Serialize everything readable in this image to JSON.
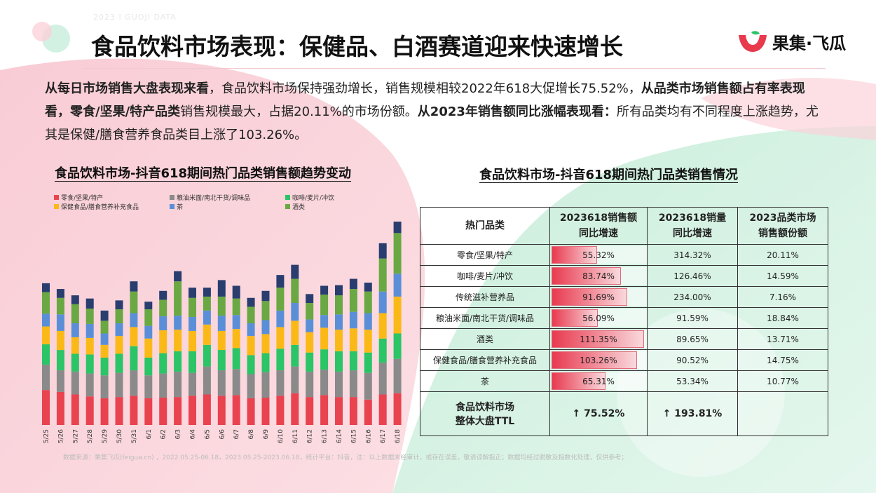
{
  "header": {
    "watermark": "2023 I GUOJI DATA",
    "title": "食品饮料市场表现：保健品、白酒赛道迎来快速增长",
    "logo_text": "果集·飞瓜",
    "logo_icon": "brand-logo-icon"
  },
  "intro": {
    "p1_bold": "从每日市场销售大盘表现来看",
    "p1": "，食品饮料市场保持强劲增长，销售规模相较2022年618大促增长75.52%，",
    "p2_bold": "从品类市场销售额占有率表现看，零食/坚果/特产品类",
    "p2": "销售规模最大，占据20.11%的市场份额。",
    "p3_bold": "从2023年销售额同比涨幅表现看：",
    "p3": "所有品类均有不同程度上涨趋势，尤其是保健/膳食营养食品类目上涨了103.26%。"
  },
  "left_chart": {
    "title": "食品饮料市场-抖音618期间热门品类销售额趋势变动"
  },
  "right_table": {
    "title": "食品饮料市场-抖音618期间热门品类销售情况",
    "headers": [
      "热门品类",
      "2023618销售额\n同比增速",
      "2023618销量\n同比增速",
      "2023品类市场\n销售额份额"
    ],
    "rows": [
      {
        "cat": "零食/坚果/特产",
        "sales_growth": "55.32%",
        "sales_growth_value": 55.32,
        "volume_growth": "314.32%",
        "share": "20.11%"
      },
      {
        "cat": "咖啡/麦片/冲饮",
        "sales_growth": "83.74%",
        "sales_growth_value": 83.74,
        "volume_growth": "126.46%",
        "share": "14.59%"
      },
      {
        "cat": "传统滋补营养品",
        "sales_growth": "91.69%",
        "sales_growth_value": 91.69,
        "volume_growth": "234.00%",
        "share": "7.16%"
      },
      {
        "cat": "粮油米面/南北干货/调味品",
        "sales_growth": "56.09%",
        "sales_growth_value": 56.09,
        "volume_growth": "91.59%",
        "share": "18.84%"
      },
      {
        "cat": "酒类",
        "sales_growth": "111.35%",
        "sales_growth_value": 111.35,
        "volume_growth": "89.65%",
        "share": "13.71%"
      },
      {
        "cat": "保健食品/膳食营养补充食品",
        "sales_growth": "103.26%",
        "sales_growth_value": 103.26,
        "volume_growth": "90.52%",
        "share": "14.75%"
      },
      {
        "cat": "茶",
        "sales_growth": "65.31%",
        "sales_growth_value": 65.31,
        "volume_growth": "53.34%",
        "share": "10.77%"
      }
    ],
    "total": {
      "cat_line1": "食品饮料市场",
      "cat_line2": "整体大盘TTL",
      "sales_growth": "↑ 75.52%",
      "volume_growth": "↑ 193.81%",
      "share": ""
    }
  },
  "footnote": "数据来源：果集飞瓜(feigua.cn) ，2022.05.25-06.18，2023.05.25-2023.06.18，统计平台：抖音，注：以上数据未经审计，或存在误差，敬请谅解指正；数据均经过脱敏及指数化处理，仅供参考；",
  "colors": {
    "accent": "#e8394d",
    "bg_pink": "#f9c6d0",
    "bg_green": "#c9eedb"
  },
  "chart_data": {
    "type": "bar",
    "stacked": true,
    "categories": [
      "5/25",
      "5/26",
      "5/27",
      "5/28",
      "5/29",
      "5/30",
      "5/31",
      "6/1",
      "6/2",
      "6/3",
      "6/4",
      "6/5",
      "6/6",
      "6/7",
      "6/8",
      "6/9",
      "6/10",
      "6/11",
      "6/12",
      "6/13",
      "6/14",
      "6/15",
      "6/16",
      "6/17",
      "6/18"
    ],
    "series": [
      {
        "name": "零食/坚果/特产",
        "color": "#e8434f",
        "values": [
          55,
          52,
          48,
          45,
          42,
          44,
          46,
          42,
          43,
          44,
          46,
          48,
          46,
          47,
          42,
          43,
          46,
          50,
          44,
          47,
          44,
          44,
          40,
          48,
          50
        ]
      },
      {
        "name": "粮油米面/南北干货/调味品",
        "color": "#8a8a8a",
        "values": [
          40,
          34,
          36,
          36,
          36,
          38,
          40,
          36,
          38,
          40,
          36,
          44,
          40,
          41,
          38,
          40,
          40,
          42,
          40,
          40,
          40,
          42,
          42,
          50,
          54
        ]
      },
      {
        "name": "咖啡/麦片/冲饮",
        "color": "#2bc466",
        "values": [
          32,
          32,
          28,
          30,
          28,
          30,
          38,
          28,
          32,
          32,
          34,
          34,
          32,
          33,
          30,
          30,
          34,
          34,
          30,
          32,
          32,
          30,
          32,
          38,
          40
        ]
      },
      {
        "name": "保健食品/膳食营养补充食品",
        "color": "#fbb918",
        "values": [
          28,
          30,
          26,
          26,
          20,
          28,
          30,
          30,
          36,
          34,
          32,
          32,
          30,
          30,
          30,
          30,
          34,
          38,
          32,
          34,
          34,
          36,
          36,
          40,
          58
        ]
      },
      {
        "name": "茶",
        "color": "#5a8fd8",
        "values": [
          20,
          26,
          22,
          22,
          18,
          20,
          22,
          20,
          22,
          22,
          22,
          22,
          24,
          22,
          20,
          22,
          26,
          28,
          20,
          20,
          24,
          26,
          26,
          34,
          36
        ]
      },
      {
        "name": "酒类",
        "color": "#6aa843",
        "values": [
          34,
          26,
          30,
          24,
          20,
          22,
          34,
          26,
          26,
          54,
          30,
          22,
          30,
          26,
          26,
          30,
          36,
          38,
          26,
          32,
          30,
          36,
          34,
          52,
          64
        ]
      },
      {
        "name": "",
        "color": "#2a3d6f",
        "values": [
          14,
          14,
          14,
          16,
          16,
          14,
          16,
          12,
          14,
          16,
          16,
          14,
          26,
          20,
          14,
          16,
          20,
          22,
          14,
          14,
          16,
          16,
          14,
          24,
          18
        ]
      }
    ],
    "legend": [
      "零食/坚果/特产",
      "粮油米面/南北干货/调味品",
      "咖啡/麦片/冲饮",
      "保健食品/膳食营养补充食品",
      "茶",
      "酒类"
    ],
    "legend_position": "top-left",
    "grid": false
  }
}
